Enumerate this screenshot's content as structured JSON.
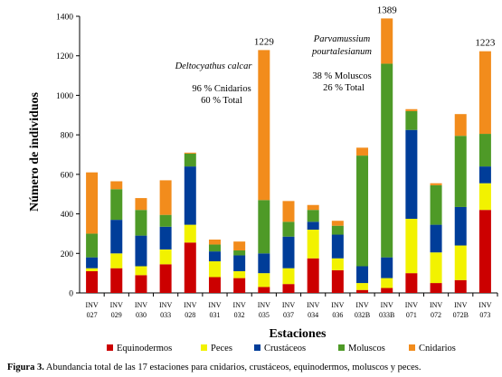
{
  "caption": {
    "label": "Figura 3.",
    "text": "Abundancia total de las 17 estaciones para cnidarios, crustáceos, equinodermos, moluscos y peces."
  },
  "chart_data": {
    "type": "bar",
    "stacked": true,
    "xlabel": "Estaciones",
    "ylabel": "Número de individuos",
    "ylim": [
      0,
      1400
    ],
    "yticks": [
      0,
      200,
      400,
      600,
      800,
      1000,
      1200,
      1400
    ],
    "grid": false,
    "legend_position": "bottom",
    "categories": [
      [
        "INV",
        "027"
      ],
      [
        "INV",
        "029"
      ],
      [
        "INV",
        "030"
      ],
      [
        "INV",
        "033"
      ],
      [
        "INV",
        "028"
      ],
      [
        "INV",
        "031"
      ],
      [
        "INV",
        "032"
      ],
      [
        "INV",
        "035"
      ],
      [
        "INV",
        "037"
      ],
      [
        "INV",
        "034"
      ],
      [
        "INV",
        "036"
      ],
      [
        "INV",
        "032B"
      ],
      [
        "INV",
        "033B"
      ],
      [
        "INV",
        "071"
      ],
      [
        "INV",
        "072"
      ],
      [
        "INV",
        "072B"
      ],
      [
        "INV",
        "073"
      ]
    ],
    "series": [
      {
        "name": "Equinodermos",
        "color": "#cc0000",
        "values": [
          110,
          125,
          90,
          145,
          255,
          80,
          75,
          30,
          45,
          175,
          115,
          15,
          25,
          100,
          50,
          65,
          420
        ]
      },
      {
        "name": "Peces",
        "color": "#f2f200",
        "values": [
          15,
          75,
          45,
          75,
          90,
          80,
          35,
          70,
          80,
          145,
          60,
          35,
          50,
          275,
          155,
          175,
          135
        ]
      },
      {
        "name": "Crustáceos",
        "color": "#003d99",
        "values": [
          55,
          170,
          155,
          115,
          295,
          50,
          80,
          100,
          160,
          40,
          120,
          85,
          105,
          450,
          140,
          195,
          85
        ]
      },
      {
        "name": "Moluscos",
        "color": "#4e9a27",
        "values": [
          120,
          155,
          130,
          60,
          65,
          35,
          25,
          270,
          75,
          60,
          45,
          560,
          980,
          95,
          200,
          360,
          165
        ]
      },
      {
        "name": "Cnidarios",
        "color": "#f28c1c",
        "values": [
          310,
          40,
          60,
          175,
          5,
          25,
          45,
          759,
          105,
          25,
          25,
          40,
          229,
          10,
          10,
          110,
          418
        ]
      }
    ],
    "totals_shown": [
      {
        "category_index": 7,
        "text": "1229"
      },
      {
        "category_index": 12,
        "text": "1389"
      },
      {
        "category_index": 16,
        "text": "1223"
      }
    ],
    "annotations": {
      "deltocyathus": {
        "species": "Deltocyathus calcar",
        "line1": "96 % Cnidarios",
        "line2": "60 % Total"
      },
      "parvamussium": {
        "species_line1": "Parvamussium",
        "species_line2": "pourtalesianum",
        "line1": "38 %  Moluscos",
        "line2": "26 % Total"
      }
    }
  }
}
